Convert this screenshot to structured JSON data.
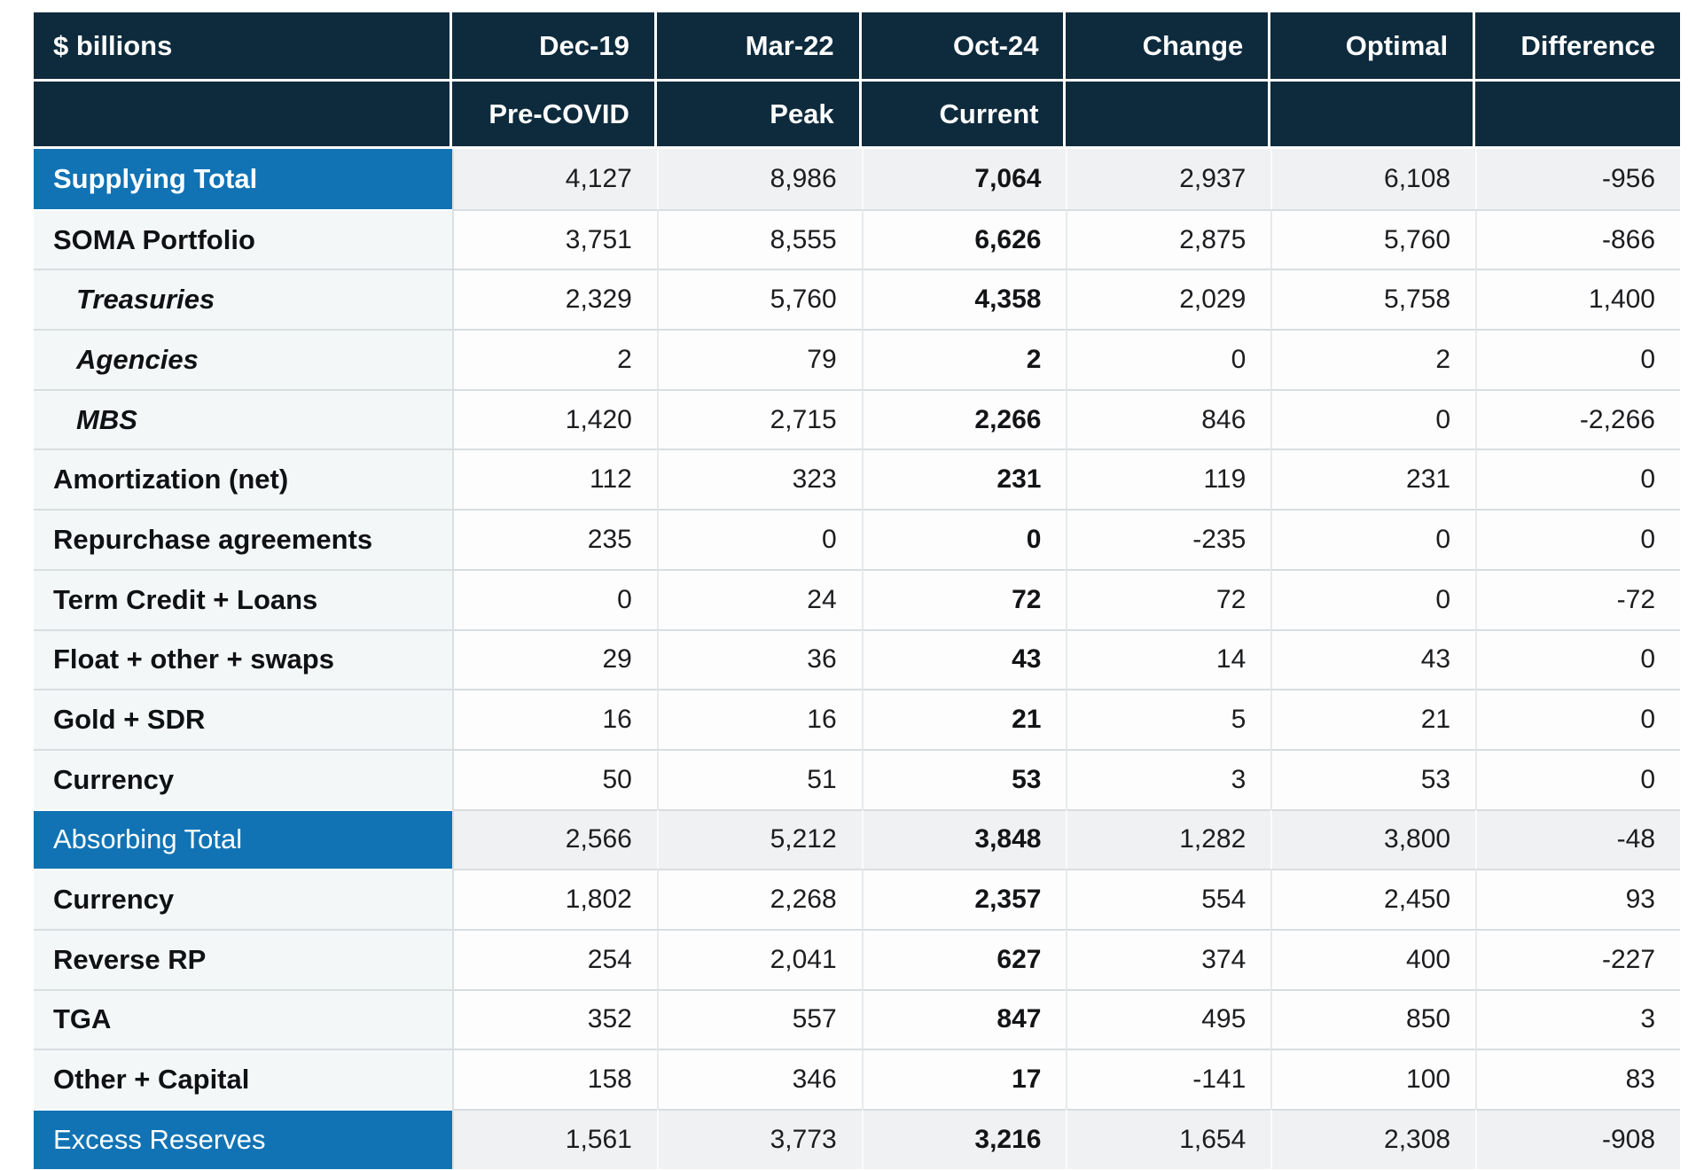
{
  "colors": {
    "header_bg": "#0E2B3D",
    "highlight_bg": "#1173B4",
    "label_column_bg": "#F4F7F8",
    "total_row_data_bg": "#F0F1F2",
    "data_cell_bg": "#FDFDFE",
    "row_border": "#D8DDE0",
    "column_border": "#E7EAEC",
    "header_text": "#FFFFFF",
    "body_text": "#1C1D1F"
  },
  "table": {
    "unit_label": "$ billions",
    "columns": [
      {
        "label": "Dec-19",
        "sublabel": "Pre-COVID"
      },
      {
        "label": "Mar-22",
        "sublabel": "Peak"
      },
      {
        "label": "Oct-24",
        "sublabel": "Current"
      },
      {
        "label": "Change",
        "sublabel": ""
      },
      {
        "label": "Optimal",
        "sublabel": ""
      },
      {
        "label": "Difference",
        "sublabel": ""
      }
    ],
    "rows": [
      {
        "label": "Supplying Total",
        "style": "total-bold",
        "values": [
          "4,127",
          "8,986",
          "7,064",
          "2,937",
          "6,108",
          "-956"
        ]
      },
      {
        "label": "SOMA Portfolio",
        "style": "main",
        "values": [
          "3,751",
          "8,555",
          "6,626",
          "2,875",
          "5,760",
          "-866"
        ]
      },
      {
        "label": "Treasuries",
        "style": "sub",
        "values": [
          "2,329",
          "5,760",
          "4,358",
          "2,029",
          "5,758",
          "1,400"
        ]
      },
      {
        "label": "Agencies",
        "style": "sub",
        "values": [
          "2",
          "79",
          "2",
          "0",
          "2",
          "0"
        ]
      },
      {
        "label": "MBS",
        "style": "sub",
        "values": [
          "1,420",
          "2,715",
          "2,266",
          "846",
          "0",
          "-2,266"
        ]
      },
      {
        "label": "Amortization (net)",
        "style": "main",
        "values": [
          "112",
          "323",
          "231",
          "119",
          "231",
          "0"
        ]
      },
      {
        "label": "Repurchase agreements",
        "style": "main",
        "values": [
          "235",
          "0",
          "0",
          "-235",
          "0",
          "0"
        ]
      },
      {
        "label": "Term Credit + Loans",
        "style": "main",
        "values": [
          "0",
          "24",
          "72",
          "72",
          "0",
          "-72"
        ]
      },
      {
        "label": "Float + other + swaps",
        "style": "main",
        "values": [
          "29",
          "36",
          "43",
          "14",
          "43",
          "0"
        ]
      },
      {
        "label": "Gold + SDR",
        "style": "main",
        "values": [
          "16",
          "16",
          "21",
          "5",
          "21",
          "0"
        ]
      },
      {
        "label": "Currency",
        "style": "main",
        "values": [
          "50",
          "51",
          "53",
          "3",
          "53",
          "0"
        ]
      },
      {
        "label": "Absorbing Total",
        "style": "total",
        "values": [
          "2,566",
          "5,212",
          "3,848",
          "1,282",
          "3,800",
          "-48"
        ]
      },
      {
        "label": "Currency",
        "style": "main",
        "values": [
          "1,802",
          "2,268",
          "2,357",
          "554",
          "2,450",
          "93"
        ]
      },
      {
        "label": "Reverse RP",
        "style": "main",
        "values": [
          "254",
          "2,041",
          "627",
          "374",
          "400",
          "-227"
        ]
      },
      {
        "label": "TGA",
        "style": "main",
        "values": [
          "352",
          "557",
          "847",
          "495",
          "850",
          "3"
        ]
      },
      {
        "label": "Other + Capital",
        "style": "main",
        "values": [
          "158",
          "346",
          "17",
          "-141",
          "100",
          "83"
        ]
      },
      {
        "label": "Excess Reserves",
        "style": "total",
        "values": [
          "1,561",
          "3,773",
          "3,216",
          "1,654",
          "2,308",
          "-908"
        ]
      }
    ]
  },
  "chart_data": {
    "type": "table",
    "title": "$ billions",
    "columns": [
      "Dec-19 Pre-COVID",
      "Mar-22 Peak",
      "Oct-24 Current",
      "Change",
      "Optimal",
      "Difference"
    ],
    "rows": [
      {
        "label": "Supplying Total",
        "values": [
          4127,
          8986,
          7064,
          2937,
          6108,
          -956
        ]
      },
      {
        "label": "SOMA Portfolio",
        "values": [
          3751,
          8555,
          6626,
          2875,
          5760,
          -866
        ]
      },
      {
        "label": "Treasuries",
        "values": [
          2329,
          5760,
          4358,
          2029,
          5758,
          1400
        ]
      },
      {
        "label": "Agencies",
        "values": [
          2,
          79,
          2,
          0,
          2,
          0
        ]
      },
      {
        "label": "MBS",
        "values": [
          1420,
          2715,
          2266,
          846,
          0,
          -2266
        ]
      },
      {
        "label": "Amortization (net)",
        "values": [
          112,
          323,
          231,
          119,
          231,
          0
        ]
      },
      {
        "label": "Repurchase agreements",
        "values": [
          235,
          0,
          0,
          -235,
          0,
          0
        ]
      },
      {
        "label": "Term Credit + Loans",
        "values": [
          0,
          24,
          72,
          72,
          0,
          -72
        ]
      },
      {
        "label": "Float + other + swaps",
        "values": [
          29,
          36,
          43,
          14,
          43,
          0
        ]
      },
      {
        "label": "Gold + SDR",
        "values": [
          16,
          16,
          21,
          5,
          21,
          0
        ]
      },
      {
        "label": "Currency",
        "values": [
          50,
          51,
          53,
          3,
          53,
          0
        ]
      },
      {
        "label": "Absorbing Total",
        "values": [
          2566,
          5212,
          3848,
          1282,
          3800,
          -48
        ]
      },
      {
        "label": "Currency",
        "values": [
          1802,
          2268,
          2357,
          554,
          2450,
          93
        ]
      },
      {
        "label": "Reverse RP",
        "values": [
          254,
          2041,
          627,
          374,
          400,
          -227
        ]
      },
      {
        "label": "TGA",
        "values": [
          352,
          557,
          847,
          495,
          850,
          3
        ]
      },
      {
        "label": "Other + Capital",
        "values": [
          158,
          346,
          17,
          -141,
          100,
          83
        ]
      },
      {
        "label": "Excess Reserves",
        "values": [
          1561,
          3773,
          3216,
          1654,
          2308,
          -908
        ]
      }
    ]
  }
}
